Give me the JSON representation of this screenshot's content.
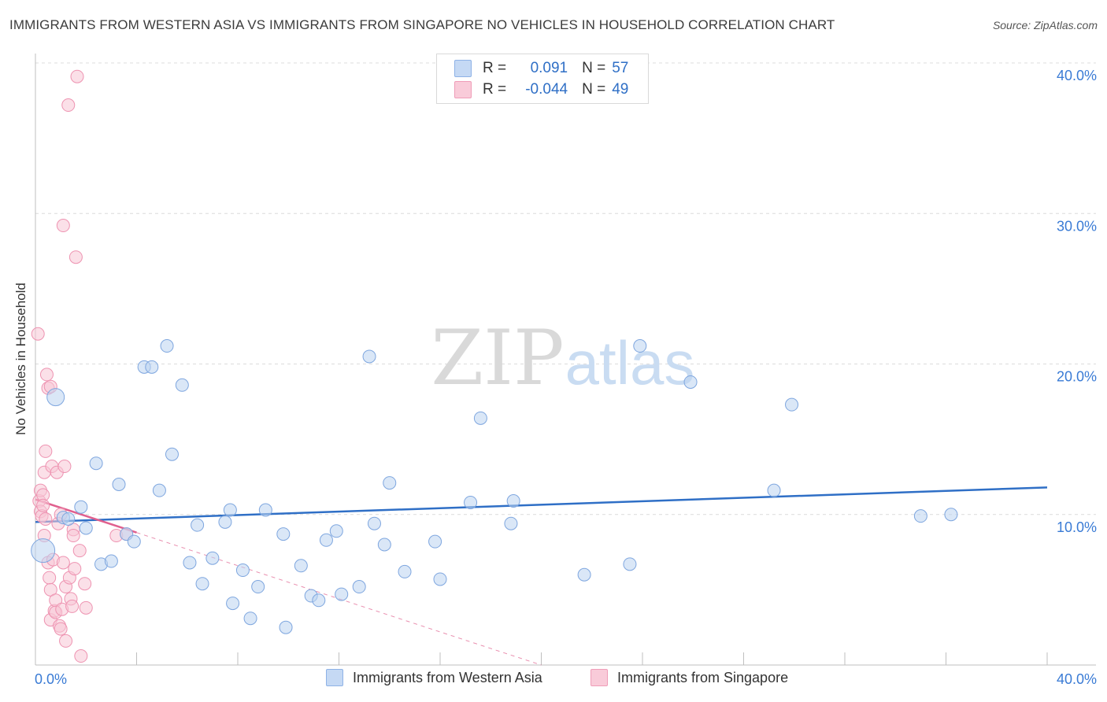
{
  "title": "IMMIGRANTS FROM WESTERN ASIA VS IMMIGRANTS FROM SINGAPORE NO VEHICLES IN HOUSEHOLD CORRELATION CHART",
  "source": "Source: ZipAtlas.com",
  "watermark": {
    "zip": "ZIP",
    "atlas": "atlas"
  },
  "legend": {
    "r_label": "R =",
    "n_label": "N =",
    "series": [
      {
        "r": "0.091",
        "n": "57"
      },
      {
        "r": "-0.044",
        "n": "49"
      }
    ]
  },
  "chart_data": {
    "type": "scatter",
    "title": "IMMIGRANTS FROM WESTERN ASIA VS IMMIGRANTS FROM SINGAPORE NO VEHICLES IN HOUSEHOLD CORRELATION CHART",
    "xlabel": "",
    "ylabel": "No Vehicles in Household",
    "xlim": [
      0,
      40
    ],
    "ylim": [
      0,
      40
    ],
    "x_tick_labels": [
      "0.0%",
      "40.0%"
    ],
    "y_tick_labels": [
      "10.0%",
      "20.0%",
      "30.0%",
      "40.0%"
    ],
    "y_ticks": [
      10,
      20,
      30,
      40
    ],
    "colors": {
      "blue": "#a9c7ef",
      "blue_line": "#2f6fc6",
      "pink": "#f4b6c9",
      "pink_line": "#e0608e",
      "tick_text": "#3a7bd5"
    },
    "series": [
      {
        "name": "Immigrants from Western Asia",
        "color": "#a9c7ef",
        "trend": {
          "x": [
            0,
            40
          ],
          "y": [
            9.5,
            11.8
          ],
          "style": "solid"
        },
        "points": [
          [
            0.3,
            7.6
          ],
          [
            0.8,
            17.8
          ],
          [
            1.1,
            9.8
          ],
          [
            1.3,
            9.7
          ],
          [
            1.8,
            10.5
          ],
          [
            2.0,
            9.1
          ],
          [
            2.4,
            13.4
          ],
          [
            2.6,
            6.7
          ],
          [
            3.0,
            6.9
          ],
          [
            3.3,
            12.0
          ],
          [
            3.6,
            8.7
          ],
          [
            3.9,
            8.2
          ],
          [
            4.3,
            19.8
          ],
          [
            4.6,
            19.8
          ],
          [
            4.9,
            11.6
          ],
          [
            5.2,
            21.2
          ],
          [
            5.4,
            14.0
          ],
          [
            5.8,
            18.6
          ],
          [
            6.1,
            6.8
          ],
          [
            6.4,
            9.3
          ],
          [
            6.6,
            5.4
          ],
          [
            7.0,
            7.1
          ],
          [
            7.5,
            9.5
          ],
          [
            7.7,
            10.3
          ],
          [
            7.8,
            4.1
          ],
          [
            8.2,
            6.3
          ],
          [
            8.5,
            3.1
          ],
          [
            8.8,
            5.2
          ],
          [
            9.1,
            10.3
          ],
          [
            9.8,
            8.7
          ],
          [
            9.9,
            2.5
          ],
          [
            10.5,
            6.6
          ],
          [
            10.9,
            4.6
          ],
          [
            11.2,
            4.3
          ],
          [
            11.5,
            8.3
          ],
          [
            11.9,
            8.9
          ],
          [
            12.1,
            4.7
          ],
          [
            12.8,
            5.2
          ],
          [
            13.2,
            20.5
          ],
          [
            13.4,
            9.4
          ],
          [
            13.8,
            8.0
          ],
          [
            14.0,
            12.1
          ],
          [
            14.6,
            6.2
          ],
          [
            15.8,
            8.2
          ],
          [
            16.0,
            5.7
          ],
          [
            17.2,
            10.8
          ],
          [
            17.6,
            16.4
          ],
          [
            18.8,
            9.4
          ],
          [
            18.9,
            10.9
          ],
          [
            21.7,
            6.0
          ],
          [
            23.5,
            6.7
          ],
          [
            23.9,
            21.2
          ],
          [
            25.9,
            18.8
          ],
          [
            29.2,
            11.6
          ],
          [
            29.9,
            17.3
          ],
          [
            35.0,
            9.9
          ],
          [
            36.2,
            10.0
          ]
        ]
      },
      {
        "name": "Immigrants from Singapore",
        "color": "#f4b6c9",
        "trend": {
          "x": [
            0,
            4.0
          ],
          "y": [
            11.0,
            8.8
          ],
          "style": "solid",
          "extended_x": [
            4.0,
            20.0
          ],
          "extended_y": [
            8.8,
            0.0
          ],
          "extended_style": "dashed"
        },
        "points": [
          [
            0.1,
            22.0
          ],
          [
            0.15,
            10.9
          ],
          [
            0.2,
            11.6
          ],
          [
            0.2,
            10.2
          ],
          [
            0.25,
            9.9
          ],
          [
            0.3,
            11.3
          ],
          [
            0.3,
            10.6
          ],
          [
            0.35,
            12.8
          ],
          [
            0.35,
            8.6
          ],
          [
            0.4,
            14.2
          ],
          [
            0.4,
            9.7
          ],
          [
            0.45,
            19.3
          ],
          [
            0.5,
            18.4
          ],
          [
            0.5,
            6.8
          ],
          [
            0.55,
            5.8
          ],
          [
            0.6,
            18.5
          ],
          [
            0.6,
            5.0
          ],
          [
            0.6,
            3.0
          ],
          [
            0.65,
            13.2
          ],
          [
            0.7,
            7.0
          ],
          [
            0.75,
            3.6
          ],
          [
            0.8,
            4.3
          ],
          [
            0.8,
            3.5
          ],
          [
            0.85,
            12.8
          ],
          [
            0.9,
            9.4
          ],
          [
            0.95,
            2.6
          ],
          [
            1.0,
            2.4
          ],
          [
            1.0,
            10.0
          ],
          [
            1.05,
            3.7
          ],
          [
            1.1,
            6.8
          ],
          [
            1.1,
            29.2
          ],
          [
            1.15,
            13.2
          ],
          [
            1.2,
            5.2
          ],
          [
            1.2,
            1.6
          ],
          [
            1.3,
            37.2
          ],
          [
            1.35,
            5.8
          ],
          [
            1.4,
            4.4
          ],
          [
            1.45,
            3.9
          ],
          [
            1.5,
            9.0
          ],
          [
            1.5,
            8.6
          ],
          [
            1.55,
            6.4
          ],
          [
            1.6,
            27.1
          ],
          [
            1.65,
            39.1
          ],
          [
            1.75,
            7.6
          ],
          [
            1.8,
            0.6
          ],
          [
            1.95,
            5.4
          ],
          [
            2.0,
            3.8
          ],
          [
            3.2,
            8.6
          ],
          [
            3.6,
            8.7
          ]
        ]
      }
    ]
  }
}
